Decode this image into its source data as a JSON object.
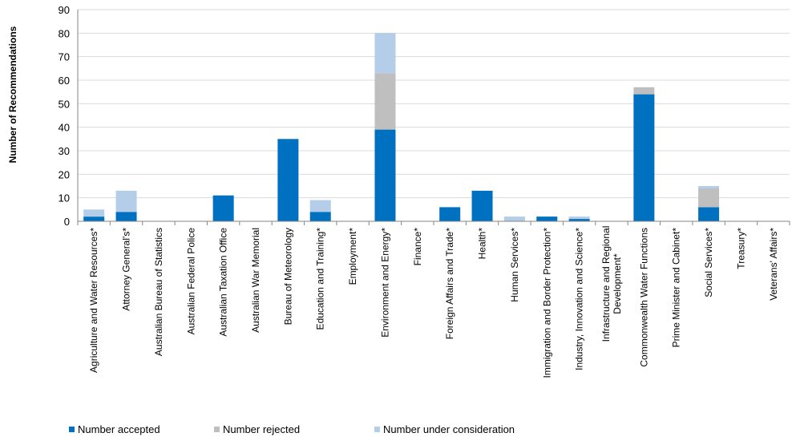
{
  "chart_data": {
    "type": "bar",
    "stacked": true,
    "title": "",
    "xlabel": "",
    "ylabel": "Number of Recommendations",
    "ylim": [
      0,
      90
    ],
    "yticks": [
      0,
      10,
      20,
      30,
      40,
      50,
      60,
      70,
      80,
      90
    ],
    "grid": true,
    "legend_position": "bottom",
    "categories": [
      "Agriculture and Water Resources*",
      "Attorney General's*",
      "Australian Bureau of Statistics",
      "Australian Federal Police",
      "Australian Taxation Office",
      "Australian War Memorial",
      "Bureau of Meteorology",
      "Education and Training*",
      "Employment*",
      "Environment and Energy*",
      "Finance*",
      "Foreign Affairs and Trade*",
      "Health*",
      "Human Services*",
      "Immigration and Border Protection*",
      "Industry, Innovation and Science*",
      "Infrastructure and Regional Development*",
      "Commonwealth Water Functions",
      "Prime Minister and Cabinet*",
      "Social Services*",
      "Treasury*",
      "Veterans' Affairs*"
    ],
    "series": [
      {
        "name": "Number accepted",
        "color": "#0070c0",
        "values": [
          2,
          4,
          0,
          0,
          11,
          0,
          35,
          4,
          0,
          39,
          0,
          6,
          13,
          0,
          2,
          1,
          0,
          54,
          0,
          6,
          0,
          0
        ]
      },
      {
        "name": "Number rejected",
        "color": "#bfbfbf",
        "values": [
          0,
          0,
          0,
          0,
          0,
          0,
          0,
          0,
          0,
          24,
          0,
          0,
          0,
          0,
          0,
          0,
          0,
          3,
          0,
          8,
          0,
          0
        ]
      },
      {
        "name": "Number under consideration",
        "color": "#b4cde8",
        "values": [
          3,
          9,
          0,
          0,
          0,
          0,
          0,
          5,
          0,
          17,
          0,
          0,
          0,
          2,
          0,
          1,
          0,
          0,
          0,
          1,
          0,
          0
        ]
      }
    ]
  }
}
